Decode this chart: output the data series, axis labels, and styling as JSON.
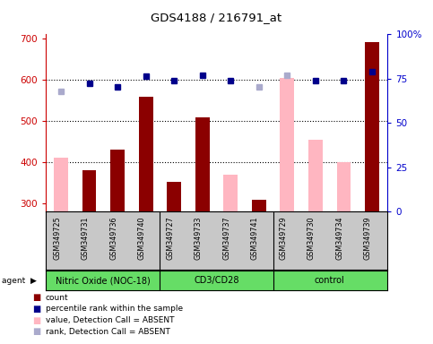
{
  "title": "GDS4188 / 216791_at",
  "samples": [
    "GSM349725",
    "GSM349731",
    "GSM349736",
    "GSM349740",
    "GSM349727",
    "GSM349733",
    "GSM349737",
    "GSM349741",
    "GSM349729",
    "GSM349730",
    "GSM349734",
    "GSM349739"
  ],
  "count_values": [
    null,
    380,
    430,
    558,
    352,
    508,
    null,
    308,
    null,
    null,
    null,
    692
  ],
  "absent_bar_values": [
    410,
    null,
    null,
    null,
    null,
    null,
    370,
    null,
    605,
    455,
    400,
    null
  ],
  "rank_present_values": [
    null,
    592,
    582,
    608,
    598,
    610,
    598,
    null,
    null,
    597,
    597,
    620
  ],
  "rank_absent_values": [
    572,
    null,
    null,
    null,
    null,
    null,
    null,
    582,
    610,
    null,
    null,
    null
  ],
  "ylim": [
    280,
    710
  ],
  "yticks": [
    300,
    400,
    500,
    600,
    700
  ],
  "y2ticks": [
    0,
    25,
    50,
    75,
    100
  ],
  "grid_values": [
    400,
    500,
    600
  ],
  "bar_width": 0.5,
  "bar_color_present": "#8b0000",
  "bar_color_absent": "#ffb6c1",
  "rank_color_present": "#00008b",
  "rank_color_absent": "#aaaacc",
  "ylabel_color": "#cc0000",
  "y2label_color": "#0000cc",
  "group_labels": [
    "Nitric Oxide (NOC-18)",
    "CD3/CD28",
    "control"
  ],
  "group_ranges": [
    [
      0,
      3
    ],
    [
      4,
      7
    ],
    [
      8,
      11
    ]
  ],
  "group_color": "#66dd66",
  "xtick_bg": "#c8c8c8",
  "legend_items": [
    {
      "color": "#8b0000",
      "label": "count"
    },
    {
      "color": "#00008b",
      "label": "percentile rank within the sample"
    },
    {
      "color": "#ffb6c1",
      "label": "value, Detection Call = ABSENT"
    },
    {
      "color": "#aaaacc",
      "label": "rank, Detection Call = ABSENT"
    }
  ]
}
